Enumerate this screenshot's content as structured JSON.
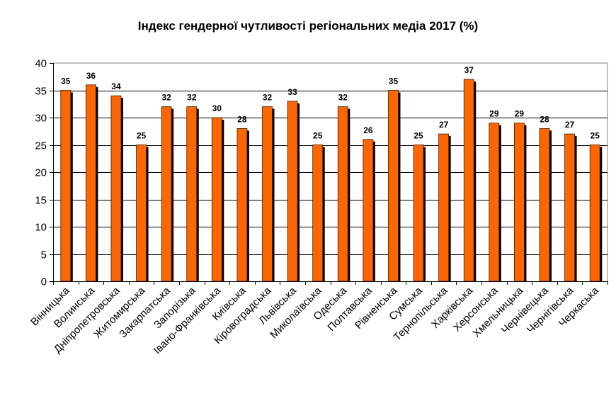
{
  "chart_data": {
    "type": "bar",
    "title": "Індекс гендерної чутливості регіональних медіа 2017 (%)",
    "xlabel": "",
    "ylabel": "",
    "ylim": [
      0,
      40
    ],
    "yticks": [
      0,
      5,
      10,
      15,
      20,
      25,
      30,
      35,
      40
    ],
    "grid": true,
    "categories": [
      "Вінницька",
      "Волинська",
      "Дніпропетровська",
      "Житомирська",
      "Закарпатська",
      "Запорізька",
      "Івано-Франківська",
      "Київська",
      "Кіровоградська",
      "Львівська",
      "Миколаївська",
      "Одеська",
      "Полтавська",
      "Рівненська",
      "Сумська",
      "Тернопільська",
      "Харківська",
      "Херсонська",
      "Хмельницька",
      "Чернівецька",
      "Чернігівська",
      "Черкаська"
    ],
    "values": [
      35,
      36,
      34,
      25,
      32,
      32,
      30,
      28,
      32,
      33,
      25,
      32,
      26,
      35,
      25,
      27,
      37,
      29,
      29,
      28,
      27,
      25
    ],
    "bar_color": "#FF6600",
    "shadow_color": "#000000"
  }
}
